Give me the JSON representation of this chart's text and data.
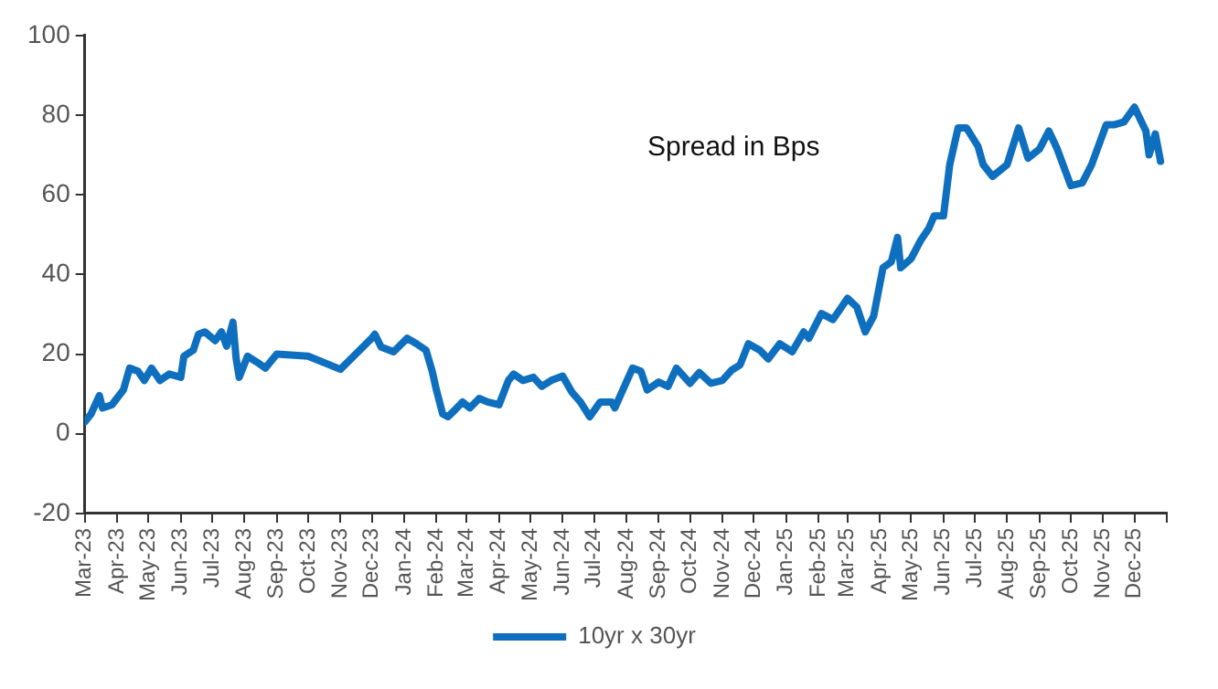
{
  "chart_data": {
    "type": "line",
    "x": [
      "2023-03-01",
      "2023-03-07",
      "2023-03-15",
      "2023-03-18",
      "2023-03-27",
      "2023-04-07",
      "2023-04-13",
      "2023-04-21",
      "2023-04-27",
      "2023-05-04",
      "2023-05-12",
      "2023-05-21",
      "2023-06-01",
      "2023-06-04",
      "2023-06-13",
      "2023-06-18",
      "2023-06-24",
      "2023-07-04",
      "2023-07-10",
      "2023-07-15",
      "2023-07-21",
      "2023-07-24",
      "2023-07-27",
      "2023-08-04",
      "2023-08-13",
      "2023-08-21",
      "2023-09-01",
      "2023-10-01",
      "2023-11-01",
      "2023-12-01",
      "2023-12-04",
      "2023-12-10",
      "2023-12-22",
      "2024-01-04",
      "2024-01-13",
      "2024-01-22",
      "2024-01-28",
      "2024-02-01",
      "2024-02-07",
      "2024-02-12",
      "2024-02-18",
      "2024-02-26",
      "2024-03-04",
      "2024-03-13",
      "2024-03-21",
      "2024-04-01",
      "2024-04-10",
      "2024-04-15",
      "2024-04-24",
      "2024-05-04",
      "2024-05-12",
      "2024-05-21",
      "2024-06-01",
      "2024-06-10",
      "2024-06-18",
      "2024-06-27",
      "2024-07-07",
      "2024-07-18",
      "2024-07-21",
      "2024-08-07",
      "2024-08-15",
      "2024-08-21",
      "2024-09-01",
      "2024-09-10",
      "2024-09-18",
      "2024-10-01",
      "2024-10-10",
      "2024-10-21",
      "2024-11-01",
      "2024-11-10",
      "2024-11-18",
      "2024-11-26",
      "2024-12-07",
      "2024-12-15",
      "2024-12-26",
      "2025-01-07",
      "2025-01-18",
      "2025-01-23",
      "2025-02-04",
      "2025-02-15",
      "2025-03-01",
      "2025-03-10",
      "2025-03-18",
      "2025-03-26",
      "2025-04-04",
      "2025-04-12",
      "2025-04-18",
      "2025-04-21",
      "2025-05-01",
      "2025-05-10",
      "2025-05-18",
      "2025-05-23",
      "2025-06-01",
      "2025-06-07",
      "2025-06-15",
      "2025-06-23",
      "2025-07-04",
      "2025-07-09",
      "2025-07-18",
      "2025-08-01",
      "2025-08-12",
      "2025-08-21",
      "2025-09-01",
      "2025-09-10",
      "2025-09-18",
      "2025-10-01",
      "2025-10-12",
      "2025-10-21",
      "2025-11-04",
      "2025-11-12",
      "2025-11-21",
      "2025-12-01",
      "2025-12-12",
      "2025-12-15",
      "2025-12-21",
      "2025-12-26"
    ],
    "series": [
      {
        "name": "10yr x 30yr",
        "color": "#0f6fbf",
        "values": [
          3,
          5,
          9.6,
          6.5,
          7.3,
          11,
          16.5,
          15.7,
          13.4,
          16.5,
          13.4,
          15,
          14.2,
          19.5,
          21,
          25,
          25.6,
          23.4,
          25.6,
          22,
          28,
          19,
          14.2,
          19.5,
          18,
          16.5,
          20,
          19.5,
          16.2,
          24,
          25,
          21.8,
          20.6,
          24,
          22.6,
          21,
          15.7,
          11,
          5,
          4.3,
          5.8,
          8,
          6.5,
          8.9,
          8,
          7.3,
          13.4,
          15,
          13.4,
          14.2,
          11.9,
          13.4,
          14.5,
          10.4,
          8,
          4.3,
          8,
          8,
          6.5,
          16.5,
          15.7,
          11,
          13,
          11.9,
          16.5,
          12.7,
          15.4,
          12.7,
          13.4,
          16,
          17.3,
          22.6,
          21,
          18.8,
          22.6,
          20.6,
          25.6,
          24,
          30.2,
          28.7,
          34,
          31.8,
          25.6,
          29.5,
          41.7,
          43.2,
          49.3,
          41.7,
          44,
          48.5,
          51.6,
          54.7,
          54.7,
          67.6,
          76.8,
          76.8,
          72.2,
          67.6,
          64.6,
          67.6,
          76.8,
          69.2,
          71.5,
          76,
          71.5,
          62.3,
          63,
          67.6,
          77.6,
          77.6,
          78.3,
          82,
          76,
          70,
          75.3,
          68.4
        ]
      }
    ],
    "xlim": [
      "2023-03-01",
      "2026-01-01"
    ],
    "xticks": [
      {
        "value": "2023-03-01",
        "label": "Mar-23"
      },
      {
        "value": "2023-04-01",
        "label": "Apr-23"
      },
      {
        "value": "2023-05-01",
        "label": "May-23"
      },
      {
        "value": "2023-06-01",
        "label": "Jun-23"
      },
      {
        "value": "2023-07-01",
        "label": "Jul-23"
      },
      {
        "value": "2023-08-01",
        "label": "Aug-23"
      },
      {
        "value": "2023-09-01",
        "label": "Sep-23"
      },
      {
        "value": "2023-10-01",
        "label": "Oct-23"
      },
      {
        "value": "2023-11-01",
        "label": "Nov-23"
      },
      {
        "value": "2023-12-01",
        "label": "Dec-23"
      },
      {
        "value": "2024-01-01",
        "label": "Jan-24"
      },
      {
        "value": "2024-02-01",
        "label": "Feb-24"
      },
      {
        "value": "2024-03-01",
        "label": "Mar-24"
      },
      {
        "value": "2024-04-01",
        "label": "Apr-24"
      },
      {
        "value": "2024-05-01",
        "label": "May-24"
      },
      {
        "value": "2024-06-01",
        "label": "Jun-24"
      },
      {
        "value": "2024-07-01",
        "label": "Jul-24"
      },
      {
        "value": "2024-08-01",
        "label": "Aug-24"
      },
      {
        "value": "2024-09-01",
        "label": "Sep-24"
      },
      {
        "value": "2024-10-01",
        "label": "Oct-24"
      },
      {
        "value": "2024-11-01",
        "label": "Nov-24"
      },
      {
        "value": "2024-12-01",
        "label": "Dec-24"
      },
      {
        "value": "2025-01-01",
        "label": "Jan-25"
      },
      {
        "value": "2025-02-01",
        "label": "Feb-25"
      },
      {
        "value": "2025-03-01",
        "label": "Mar-25"
      },
      {
        "value": "2025-04-01",
        "label": "Apr-25"
      },
      {
        "value": "2025-05-01",
        "label": "May-25"
      },
      {
        "value": "2025-06-01",
        "label": "Jun-25"
      },
      {
        "value": "2025-07-01",
        "label": "Jul-25"
      },
      {
        "value": "2025-08-01",
        "label": "Aug-25"
      },
      {
        "value": "2025-09-01",
        "label": "Sep-25"
      },
      {
        "value": "2025-10-01",
        "label": "Oct-25"
      },
      {
        "value": "2025-11-01",
        "label": "Nov-25"
      },
      {
        "value": "2025-12-01",
        "label": "Dec-25"
      },
      {
        "value": "2026-01-01",
        "label": null
      }
    ],
    "ylim": [
      -20,
      100
    ],
    "yticks": [
      -20,
      0,
      20,
      40,
      60,
      80,
      100
    ],
    "grid": false,
    "legend": "bottom",
    "marker": "none",
    "line_style": "solid",
    "annotations": [
      "Spread in Bps"
    ]
  }
}
